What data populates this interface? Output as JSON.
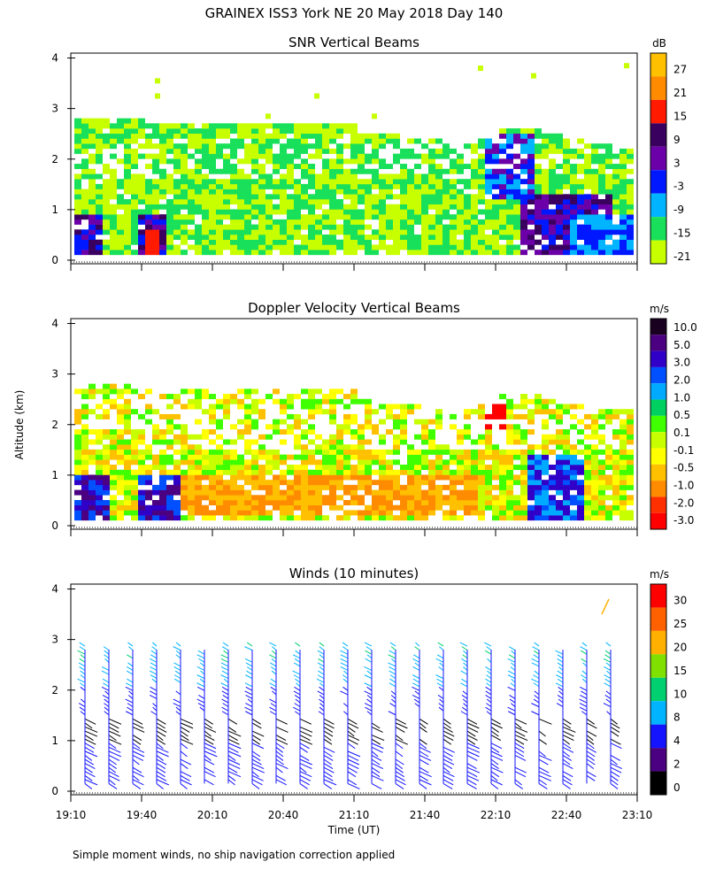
{
  "title": "GRAINEX ISS3 York NE  20 May 2018 Day 140",
  "ylabel": "Altitude (km)",
  "xlabel": "Time (UT)",
  "footnote": "Simple moment winds, no ship navigation correction applied",
  "colors": {
    "background": "#ffffff",
    "text": "#000000"
  },
  "chart_data": [
    {
      "type": "heatmap",
      "title": "SNR Vertical Beams",
      "units": "dB",
      "ylim": [
        0,
        4
      ],
      "yticks": [
        "0",
        "1",
        "2",
        "3",
        "4"
      ],
      "x_range": [
        "19:10",
        "23:10"
      ],
      "colorbar": {
        "labels": [
          "27",
          "21",
          "15",
          "9",
          "3",
          "-3",
          "-9",
          "-15",
          "-21"
        ],
        "colors": [
          "#ffc000",
          "#ff8c00",
          "#ff1a00",
          "#3a0060",
          "#6b00a8",
          "#0018ff",
          "#00b4ff",
          "#19e05a",
          "#c8ff00"
        ]
      }
    },
    {
      "type": "heatmap",
      "title": "Doppler Velocity Vertical Beams",
      "units": "m/s",
      "ylim": [
        0,
        4
      ],
      "yticks": [
        "0",
        "1",
        "2",
        "3",
        "4"
      ],
      "x_range": [
        "19:10",
        "23:10"
      ],
      "colorbar": {
        "labels": [
          "10.0",
          "5.0",
          "3.0",
          "2.0",
          "1.0",
          "0.5",
          "0.1",
          "-0.1",
          "-0.5",
          "-1.0",
          "-2.0",
          "-3.0"
        ],
        "colors": [
          "#1a0020",
          "#4b0082",
          "#3000c8",
          "#0050ff",
          "#00aaff",
          "#00d060",
          "#40ff00",
          "#c8ff00",
          "#ffff00",
          "#ffc000",
          "#ff8c00",
          "#ff3000",
          "#ff0000"
        ]
      }
    },
    {
      "type": "wind barbs",
      "title": "Winds (10 minutes)",
      "units": "m/s",
      "ylim": [
        0,
        4
      ],
      "yticks": [
        "0",
        "1",
        "2",
        "3",
        "4"
      ],
      "x": [
        "19:10",
        "19:40",
        "20:10",
        "20:40",
        "21:10",
        "21:40",
        "22:10",
        "22:40",
        "23:10"
      ],
      "colorbar": {
        "labels": [
          "30",
          "25",
          "20",
          "15",
          "10",
          "8",
          "4",
          "2",
          "0"
        ],
        "colors": [
          "#ff0000",
          "#ff6000",
          "#ffb000",
          "#80e000",
          "#00d070",
          "#00b4ff",
          "#1414ff",
          "#4b0082",
          "#000000"
        ]
      }
    }
  ]
}
